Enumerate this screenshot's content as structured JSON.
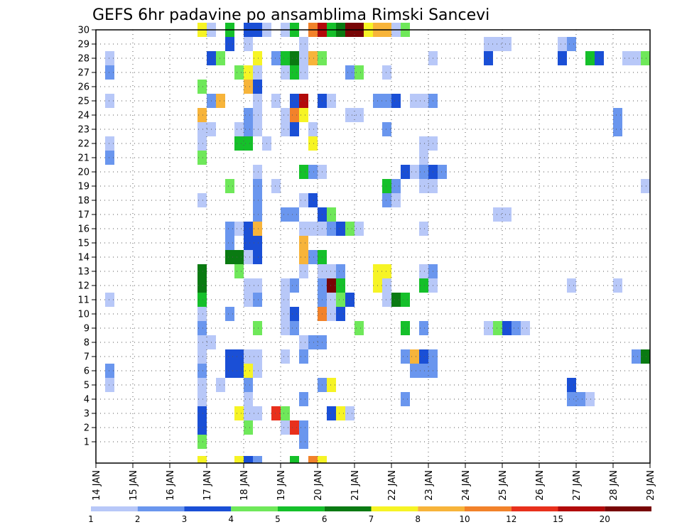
{
  "chart_data": {
    "type": "heatmap",
    "title": "GEFS 6hr padavine po ansamblima Rimski Sancevi",
    "xlabel": "",
    "ylabel": "",
    "x_tick_labels": [
      "14 JAN",
      "15 JAN",
      "16 JAN",
      "17 JAN",
      "18 JAN",
      "19 JAN",
      "20 JAN",
      "21 JAN",
      "22 JAN",
      "23 JAN",
      "24 JAN",
      "25 JAN",
      "26 JAN",
      "27 JAN",
      "28 JAN",
      "29 JAN"
    ],
    "x_range_days": [
      0,
      15
    ],
    "y_tick_labels": [
      "1",
      "2",
      "3",
      "4",
      "5",
      "6",
      "7",
      "8",
      "9",
      "10",
      "11",
      "12",
      "13",
      "14",
      "15",
      "16",
      "17",
      "18",
      "19",
      "20",
      "21",
      "22",
      "23",
      "24",
      "25",
      "26",
      "27",
      "28",
      "29",
      "30"
    ],
    "y_range_members": [
      0,
      30
    ],
    "grid": "dotted",
    "colorbar": {
      "placement": "bottom",
      "labels": [
        "1",
        "2",
        "3",
        "4",
        "5",
        "6",
        "7",
        "8",
        "10",
        "12",
        "15",
        "20"
      ],
      "colors": [
        "#b8c8f8",
        "#6a96ee",
        "#1a4fd6",
        "#6fe85a",
        "#15c02a",
        "#0a7a12",
        "#f6f425",
        "#f7b43a",
        "#f2822a",
        "#e8301c",
        "#b20a0a",
        "#780505"
      ]
    },
    "cell_width_days": 0.25,
    "cells": [
      [
        0.25,
        28,
        1
      ],
      [
        0.25,
        27,
        2
      ],
      [
        0.25,
        25,
        1
      ],
      [
        0.25,
        22,
        1
      ],
      [
        0.25,
        21,
        2
      ],
      [
        0.25,
        11,
        1
      ],
      [
        0.25,
        6,
        2
      ],
      [
        0.25,
        5,
        1
      ],
      [
        2.75,
        30,
        7
      ],
      [
        2.75,
        26,
        4
      ],
      [
        2.75,
        24,
        8
      ],
      [
        2.75,
        23,
        1
      ],
      [
        2.75,
        22,
        1
      ],
      [
        2.75,
        21,
        4
      ],
      [
        2.75,
        18,
        1
      ],
      [
        2.75,
        13,
        6
      ],
      [
        2.75,
        12,
        6
      ],
      [
        2.75,
        11,
        5
      ],
      [
        2.75,
        10,
        1
      ],
      [
        2.75,
        9,
        2
      ],
      [
        2.75,
        8,
        1
      ],
      [
        2.75,
        7,
        1
      ],
      [
        2.75,
        6,
        2
      ],
      [
        2.75,
        5,
        1
      ],
      [
        2.75,
        4,
        1
      ],
      [
        2.75,
        3,
        3
      ],
      [
        2.75,
        2,
        3
      ],
      [
        2.75,
        1,
        4
      ],
      [
        3.0,
        30,
        1
      ],
      [
        3.0,
        28,
        3
      ],
      [
        3.0,
        25,
        2
      ],
      [
        3.0,
        23,
        1
      ],
      [
        3.0,
        8,
        1
      ],
      [
        3.25,
        28,
        4
      ],
      [
        3.25,
        25,
        8
      ],
      [
        3.25,
        5,
        1
      ],
      [
        3.5,
        30,
        5
      ],
      [
        3.5,
        29,
        3
      ],
      [
        3.5,
        19,
        4
      ],
      [
        3.5,
        16,
        2
      ],
      [
        3.5,
        15,
        2
      ],
      [
        3.5,
        14,
        6
      ],
      [
        3.5,
        10,
        2
      ],
      [
        3.5,
        7,
        3
      ],
      [
        3.5,
        6,
        3
      ],
      [
        3.75,
        27,
        4
      ],
      [
        3.75,
        23,
        1
      ],
      [
        3.75,
        22,
        5
      ],
      [
        3.75,
        16,
        1
      ],
      [
        3.75,
        14,
        6
      ],
      [
        3.75,
        13,
        4
      ],
      [
        3.75,
        7,
        3
      ],
      [
        3.75,
        6,
        3
      ],
      [
        3.75,
        3,
        7
      ],
      [
        4.0,
        30,
        3
      ],
      [
        4.0,
        29,
        1
      ],
      [
        4.0,
        27,
        7
      ],
      [
        4.0,
        26,
        8
      ],
      [
        4.0,
        24,
        2
      ],
      [
        4.0,
        23,
        2
      ],
      [
        4.0,
        22,
        5
      ],
      [
        4.0,
        16,
        3
      ],
      [
        4.0,
        15,
        3
      ],
      [
        4.0,
        14,
        1
      ],
      [
        4.0,
        12,
        1
      ],
      [
        4.0,
        11,
        1
      ],
      [
        4.0,
        7,
        1
      ],
      [
        4.0,
        6,
        7
      ],
      [
        4.0,
        5,
        2
      ],
      [
        4.0,
        4,
        1
      ],
      [
        4.0,
        3,
        1
      ],
      [
        4.0,
        2,
        4
      ],
      [
        4.25,
        30,
        3
      ],
      [
        4.25,
        28,
        7
      ],
      [
        4.25,
        27,
        1
      ],
      [
        4.25,
        26,
        3
      ],
      [
        4.25,
        25,
        1
      ],
      [
        4.25,
        24,
        1
      ],
      [
        4.25,
        23,
        1
      ],
      [
        4.25,
        20,
        1
      ],
      [
        4.25,
        19,
        2
      ],
      [
        4.25,
        18,
        2
      ],
      [
        4.25,
        17,
        2
      ],
      [
        4.25,
        16,
        8
      ],
      [
        4.25,
        15,
        3
      ],
      [
        4.25,
        14,
        3
      ],
      [
        4.25,
        12,
        1
      ],
      [
        4.25,
        11,
        2
      ],
      [
        4.25,
        9,
        4
      ],
      [
        4.25,
        7,
        1
      ],
      [
        4.25,
        6,
        1
      ],
      [
        4.25,
        3,
        1
      ],
      [
        4.5,
        30,
        1
      ],
      [
        4.5,
        22,
        1
      ],
      [
        4.75,
        28,
        2
      ],
      [
        4.75,
        25,
        1
      ],
      [
        4.75,
        19,
        1
      ],
      [
        4.75,
        3,
        10
      ],
      [
        5.0,
        30,
        1
      ],
      [
        5.0,
        28,
        5
      ],
      [
        5.0,
        27,
        1
      ],
      [
        5.0,
        24,
        1
      ],
      [
        5.0,
        23,
        1
      ],
      [
        5.0,
        17,
        2
      ],
      [
        5.0,
        12,
        1
      ],
      [
        5.0,
        11,
        1
      ],
      [
        5.0,
        10,
        1
      ],
      [
        5.0,
        9,
        1
      ],
      [
        5.0,
        7,
        1
      ],
      [
        5.0,
        3,
        4
      ],
      [
        5.0,
        2,
        1
      ],
      [
        5.25,
        30,
        5
      ],
      [
        5.25,
        28,
        6
      ],
      [
        5.25,
        27,
        5
      ],
      [
        5.25,
        25,
        3
      ],
      [
        5.25,
        24,
        9
      ],
      [
        5.25,
        23,
        3
      ],
      [
        5.25,
        17,
        2
      ],
      [
        5.25,
        12,
        2
      ],
      [
        5.25,
        10,
        3
      ],
      [
        5.25,
        9,
        2
      ],
      [
        5.25,
        2,
        10
      ],
      [
        5.5,
        29,
        1
      ],
      [
        5.5,
        28,
        1
      ],
      [
        5.5,
        27,
        1
      ],
      [
        5.5,
        25,
        11
      ],
      [
        5.5,
        24,
        7
      ],
      [
        5.5,
        20,
        5
      ],
      [
        5.5,
        18,
        1
      ],
      [
        5.5,
        16,
        1
      ],
      [
        5.5,
        15,
        8
      ],
      [
        5.5,
        14,
        8
      ],
      [
        5.5,
        13,
        1
      ],
      [
        5.5,
        8,
        1
      ],
      [
        5.5,
        7,
        2
      ],
      [
        5.5,
        4,
        2
      ],
      [
        5.5,
        2,
        2
      ],
      [
        5.5,
        1,
        2
      ],
      [
        5.75,
        30,
        9
      ],
      [
        5.75,
        28,
        8
      ],
      [
        5.75,
        23,
        1
      ],
      [
        5.75,
        22,
        7
      ],
      [
        5.75,
        20,
        2
      ],
      [
        5.75,
        18,
        3
      ],
      [
        5.75,
        16,
        1
      ],
      [
        5.75,
        14,
        2
      ],
      [
        5.75,
        8,
        2
      ],
      [
        6.0,
        30,
        11
      ],
      [
        6.0,
        28,
        4
      ],
      [
        6.0,
        25,
        3
      ],
      [
        6.0,
        20,
        1
      ],
      [
        6.0,
        17,
        3
      ],
      [
        6.0,
        16,
        1
      ],
      [
        6.0,
        14,
        5
      ],
      [
        6.0,
        13,
        1
      ],
      [
        6.0,
        12,
        2
      ],
      [
        6.0,
        11,
        2
      ],
      [
        6.0,
        10,
        9
      ],
      [
        6.0,
        8,
        2
      ],
      [
        6.0,
        5,
        2
      ],
      [
        6.25,
        30,
        5
      ],
      [
        6.25,
        25,
        1
      ],
      [
        6.25,
        17,
        4
      ],
      [
        6.25,
        16,
        2
      ],
      [
        6.25,
        13,
        1
      ],
      [
        6.25,
        12,
        12
      ],
      [
        6.25,
        11,
        1
      ],
      [
        6.25,
        10,
        1
      ],
      [
        6.25,
        5,
        7
      ],
      [
        6.25,
        3,
        3
      ],
      [
        6.5,
        30,
        6
      ],
      [
        6.5,
        16,
        3
      ],
      [
        6.5,
        13,
        2
      ],
      [
        6.5,
        12,
        5
      ],
      [
        6.5,
        11,
        4
      ],
      [
        6.5,
        10,
        3
      ],
      [
        6.5,
        3,
        7
      ],
      [
        6.75,
        30,
        12
      ],
      [
        6.75,
        27,
        2
      ],
      [
        6.75,
        24,
        1
      ],
      [
        6.75,
        16,
        4
      ],
      [
        6.75,
        11,
        3
      ],
      [
        6.75,
        3,
        1
      ],
      [
        7.0,
        30,
        12
      ],
      [
        7.0,
        27,
        4
      ],
      [
        7.0,
        24,
        1
      ],
      [
        7.0,
        16,
        1
      ],
      [
        7.0,
        9,
        4
      ],
      [
        7.25,
        30,
        7
      ],
      [
        7.5,
        30,
        8
      ],
      [
        7.5,
        25,
        2
      ],
      [
        7.5,
        13,
        7
      ],
      [
        7.5,
        12,
        7
      ],
      [
        7.75,
        30,
        8
      ],
      [
        7.75,
        27,
        1
      ],
      [
        7.75,
        25,
        2
      ],
      [
        7.75,
        23,
        2
      ],
      [
        7.75,
        19,
        5
      ],
      [
        7.75,
        18,
        2
      ],
      [
        7.75,
        13,
        7
      ],
      [
        7.75,
        12,
        1
      ],
      [
        7.75,
        11,
        1
      ],
      [
        8.0,
        30,
        1
      ],
      [
        8.0,
        25,
        3
      ],
      [
        8.0,
        19,
        2
      ],
      [
        8.0,
        18,
        1
      ],
      [
        8.0,
        11,
        6
      ],
      [
        8.25,
        30,
        4
      ],
      [
        8.25,
        20,
        3
      ],
      [
        8.25,
        11,
        5
      ],
      [
        8.25,
        9,
        5
      ],
      [
        8.25,
        7,
        2
      ],
      [
        8.25,
        4,
        2
      ],
      [
        8.5,
        25,
        1
      ],
      [
        8.5,
        20,
        1
      ],
      [
        8.5,
        7,
        8
      ],
      [
        8.5,
        6,
        2
      ],
      [
        8.75,
        25,
        1
      ],
      [
        8.75,
        22,
        1
      ],
      [
        8.75,
        21,
        1
      ],
      [
        8.75,
        20,
        2
      ],
      [
        8.75,
        19,
        1
      ],
      [
        8.75,
        16,
        1
      ],
      [
        8.75,
        13,
        1
      ],
      [
        8.75,
        12,
        5
      ],
      [
        8.75,
        9,
        2
      ],
      [
        8.75,
        7,
        3
      ],
      [
        8.75,
        6,
        2
      ],
      [
        9.0,
        28,
        1
      ],
      [
        9.0,
        25,
        2
      ],
      [
        9.0,
        22,
        1
      ],
      [
        9.0,
        20,
        3
      ],
      [
        9.0,
        19,
        1
      ],
      [
        9.0,
        13,
        2
      ],
      [
        9.0,
        12,
        1
      ],
      [
        9.0,
        7,
        2
      ],
      [
        9.0,
        6,
        2
      ],
      [
        9.25,
        20,
        2
      ],
      [
        10.5,
        29,
        1
      ],
      [
        10.5,
        28,
        3
      ],
      [
        10.5,
        9,
        1
      ],
      [
        10.75,
        29,
        1
      ],
      [
        10.75,
        17,
        1
      ],
      [
        10.75,
        9,
        4
      ],
      [
        11.0,
        29,
        1
      ],
      [
        11.0,
        17,
        1
      ],
      [
        11.0,
        9,
        3
      ],
      [
        11.25,
        9,
        2
      ],
      [
        11.5,
        9,
        1
      ],
      [
        12.5,
        29,
        1
      ],
      [
        12.5,
        28,
        3
      ],
      [
        12.75,
        29,
        2
      ],
      [
        12.75,
        12,
        1
      ],
      [
        12.75,
        5,
        3
      ],
      [
        12.75,
        4,
        2
      ],
      [
        13.0,
        4,
        2
      ],
      [
        13.25,
        28,
        5
      ],
      [
        13.25,
        4,
        1
      ],
      [
        13.5,
        28,
        3
      ],
      [
        14.0,
        24,
        2
      ],
      [
        14.0,
        23,
        2
      ],
      [
        14.0,
        12,
        1
      ],
      [
        14.25,
        28,
        1
      ],
      [
        14.5,
        28,
        1
      ],
      [
        14.5,
        7,
        2
      ],
      [
        14.75,
        28,
        4
      ],
      [
        14.75,
        19,
        1
      ],
      [
        14.75,
        7,
        6
      ],
      [
        3.75,
        0,
        7
      ],
      [
        4.0,
        0,
        3
      ],
      [
        4.25,
        0,
        2
      ],
      [
        5.25,
        0,
        5
      ],
      [
        5.75,
        0,
        9
      ],
      [
        6.0,
        0,
        7
      ],
      [
        2.75,
        0,
        7
      ]
    ]
  }
}
